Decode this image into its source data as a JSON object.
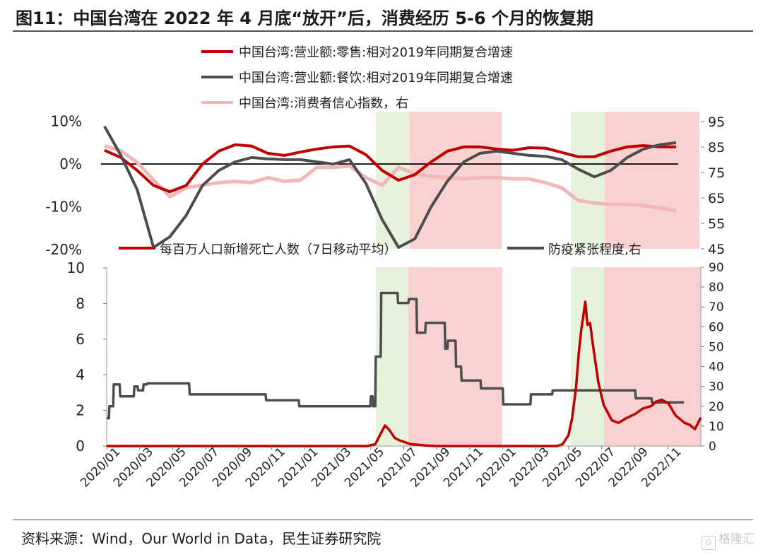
{
  "title": "图11：中国台湾在 2022 年 4 月底“放开”后，消费经历 5-6 个月的恢复期",
  "source": "资料来源：Wind，Our World in Data，民生证券研究院",
  "watermark": "格隆汇",
  "colors": {
    "red": "#c00000",
    "gray": "#4d4d4d",
    "pink": "#f0b8b8",
    "green_band": "#e7f2dc",
    "red_band": "#fad1d1"
  },
  "chart_data": [
    {
      "type": "line",
      "legend": [
        "中国台湾:营业额:零售:相对2019年同期复合增速",
        "中国台湾:营业额:餐饮:相对2019年同期复合增速",
        "中国台湾:消费者信心指数，右"
      ],
      "left_ticks": [
        "10%",
        "0%",
        "-10%",
        "-20%"
      ],
      "right_ticks": [
        "95",
        "85",
        "75",
        "65",
        "55",
        "45"
      ],
      "ylim_left": [
        -20,
        10
      ],
      "ylim_right": [
        45,
        95
      ],
      "shaded_periods": [
        {
          "from": "2021-05",
          "to": "2021-06",
          "color": "green"
        },
        {
          "from": "2021-07",
          "to": "2021-11",
          "color": "red"
        },
        {
          "from": "2022-05",
          "to": "2022-06",
          "color": "green"
        },
        {
          "from": "2022-07",
          "to": "2022-12",
          "color": "red"
        }
      ],
      "series": [
        {
          "name": "中国台湾:营业额:零售:相对2019年同期复合增速",
          "axis": "left",
          "color": "#c00000",
          "x": [
            "2020-01",
            "2020-02",
            "2020-03",
            "2020-04",
            "2020-05",
            "2020-06",
            "2020-07",
            "2020-08",
            "2020-09",
            "2020-10",
            "2020-11",
            "2020-12",
            "2021-01",
            "2021-02",
            "2021-03",
            "2021-04",
            "2021-05",
            "2021-06",
            "2021-07",
            "2021-08",
            "2021-09",
            "2021-10",
            "2021-11",
            "2021-12",
            "2022-01",
            "2022-02",
            "2022-03",
            "2022-04",
            "2022-05",
            "2022-06",
            "2022-07",
            "2022-08",
            "2022-09",
            "2022-10",
            "2022-11",
            "2022-12"
          ],
          "values": [
            3.2,
            1.5,
            -1.5,
            -5,
            -6.5,
            -5,
            0,
            3,
            4.5,
            4.2,
            2.5,
            2,
            2.8,
            3.5,
            4,
            4.2,
            2.2,
            -1.5,
            -3.8,
            -2.5,
            0.5,
            3,
            4,
            4,
            3.5,
            3.2,
            3.8,
            3.7,
            2.7,
            1.7,
            1.7,
            3,
            4,
            4.3,
            4,
            4
          ],
          "xlim": [
            "2020-01",
            "2022-12"
          ]
        },
        {
          "name": "中国台湾:营业额:餐饮:相对2019年同期复合增速",
          "axis": "left",
          "color": "#4d4d4d",
          "x": [
            "2020-01",
            "2020-02",
            "2020-03",
            "2020-04",
            "2020-05",
            "2020-06",
            "2020-07",
            "2020-08",
            "2020-09",
            "2020-10",
            "2020-11",
            "2020-12",
            "2021-01",
            "2021-02",
            "2021-03",
            "2021-04",
            "2021-05",
            "2021-06",
            "2021-07",
            "2021-08",
            "2021-09",
            "2021-10",
            "2021-11",
            "2021-12",
            "2022-01",
            "2022-02",
            "2022-03",
            "2022-04",
            "2022-05",
            "2022-06",
            "2022-07",
            "2022-08",
            "2022-09",
            "2022-10",
            "2022-11",
            "2022-12"
          ],
          "values": [
            8.8,
            2,
            -6,
            -19.5,
            -17,
            -12,
            -5,
            -1.5,
            0.5,
            1.5,
            1.2,
            1,
            1,
            0.5,
            0,
            1,
            -4.5,
            -13,
            -19.5,
            -17.5,
            -10,
            -4,
            0.5,
            2.5,
            3,
            2.5,
            2,
            1.8,
            1,
            -1.2,
            -3,
            -1.5,
            1.5,
            3.5,
            4.5,
            5
          ],
          "xlim": [
            "2020-01",
            "2022-12"
          ]
        },
        {
          "name": "中国台湾:消费者信心指数，右",
          "axis": "right",
          "color": "#f0b8b8",
          "x": [
            "2020-01",
            "2020-02",
            "2020-03",
            "2020-04",
            "2020-05",
            "2020-06",
            "2020-07",
            "2020-08",
            "2020-09",
            "2020-10",
            "2020-11",
            "2020-12",
            "2021-01",
            "2021-02",
            "2021-03",
            "2021-04",
            "2021-05",
            "2021-06",
            "2021-07",
            "2021-08",
            "2021-09",
            "2021-10",
            "2021-11",
            "2021-12",
            "2022-01",
            "2022-02",
            "2022-03",
            "2022-04",
            "2022-05",
            "2022-06",
            "2022-07",
            "2022-08",
            "2022-09",
            "2022-10",
            "2022-11",
            "2022-12"
          ],
          "values": [
            85.5,
            83.5,
            79,
            72,
            65.5,
            69,
            70,
            71,
            71.5,
            71,
            73,
            71.5,
            72,
            77,
            77,
            77.5,
            73,
            70,
            77,
            74.5,
            73.5,
            73,
            72.5,
            73,
            73,
            72.5,
            72.5,
            71,
            69,
            64,
            63,
            62.5,
            62.5,
            62,
            61,
            60
          ],
          "xlim": [
            "2020-01",
            "2022-12"
          ]
        }
      ]
    },
    {
      "type": "line",
      "legend": [
        "每百万人口新增死亡人数（7日移动平均）",
        "防疫紧张程度,右"
      ],
      "left_ticks": [
        "10",
        "8",
        "6",
        "4",
        "2",
        "0"
      ],
      "right_ticks": [
        "90",
        "80",
        "70",
        "60",
        "50",
        "40",
        "30",
        "20",
        "10",
        "0"
      ],
      "x_tick_labels": [
        "2020/01",
        "2020/03",
        "2020/05",
        "2020/07",
        "2020/09",
        "2020/11",
        "2021/01",
        "2021/03",
        "2021/05",
        "2021/07",
        "2021/09",
        "2021/11",
        "2022/01",
        "2022/03",
        "2022/05",
        "2022/07",
        "2022/09",
        "2022/11"
      ],
      "ylim_left": [
        0,
        10
      ],
      "ylim_right": [
        0,
        90
      ],
      "series": [
        {
          "name": "每百万人口新增死亡人数（7日移动平均）",
          "axis": "left",
          "color": "#c00000",
          "x": [
            "2020-01-01",
            "2021-04-25",
            "2021-05-10",
            "2021-05-20",
            "2021-05-28",
            "2021-06-05",
            "2021-06-15",
            "2021-06-25",
            "2021-07-05",
            "2021-07-15",
            "2021-07-25",
            "2021-08-10",
            "2021-09-01",
            "2022-04-10",
            "2022-04-20",
            "2022-05-01",
            "2022-05-08",
            "2022-05-15",
            "2022-05-20",
            "2022-05-25",
            "2022-05-28",
            "2022-06-01",
            "2022-06-05",
            "2022-06-10",
            "2022-06-15",
            "2022-06-25",
            "2022-07-05",
            "2022-07-20",
            "2022-08-01",
            "2022-08-15",
            "2022-09-01",
            "2022-09-15",
            "2022-10-01",
            "2022-10-10",
            "2022-10-20",
            "2022-11-01",
            "2022-11-15",
            "2022-12-01",
            "2022-12-10",
            "2022-12-20",
            "2022-12-31"
          ],
          "values": [
            0,
            0,
            0.1,
            0.7,
            1.15,
            0.9,
            0.45,
            0.3,
            0.2,
            0.1,
            0.08,
            0.03,
            0,
            0,
            0.1,
            0.6,
            1.6,
            3.3,
            5.2,
            6.6,
            7.2,
            8.1,
            6.8,
            6.9,
            5.7,
            3.6,
            2.3,
            1.45,
            1.3,
            1.55,
            1.8,
            2.1,
            2.25,
            2.5,
            2.6,
            2.4,
            1.7,
            1.3,
            1.2,
            0.95,
            1.6
          ],
          "xlim": [
            "2020-01-01",
            "2022-12-31"
          ]
        },
        {
          "name": "防疫紧张程度,右",
          "axis": "right",
          "color": "#4d4d4d",
          "x": [
            "2020-01-01",
            "2020-01-05",
            "2020-01-06",
            "2020-01-13",
            "2020-01-14",
            "2020-01-25",
            "2020-01-26",
            "2020-02-20",
            "2020-02-21",
            "2020-02-27",
            "2020-02-28",
            "2020-03-08",
            "2020-03-09",
            "2020-03-15",
            "2020-03-16",
            "2020-04-15",
            "2020-04-16",
            "2020-06-01",
            "2020-06-02",
            "2020-10-20",
            "2020-10-21",
            "2020-12-20",
            "2020-12-21",
            "2021-05-01",
            "2021-05-02",
            "2021-05-05",
            "2021-05-06",
            "2021-05-10",
            "2021-05-11",
            "2021-05-20",
            "2021-05-21",
            "2021-06-20",
            "2021-06-21",
            "2021-07-10",
            "2021-07-11",
            "2021-07-25",
            "2021-07-26",
            "2021-08-10",
            "2021-08-11",
            "2021-09-15",
            "2021-09-16",
            "2021-09-20",
            "2021-09-21",
            "2021-10-05",
            "2021-10-06",
            "2021-10-15",
            "2021-10-16",
            "2021-11-20",
            "2021-11-21",
            "2021-12-31",
            "2022-01-01",
            "2022-02-20",
            "2022-02-21",
            "2022-04-01",
            "2022-04-02",
            "2022-09-01",
            "2022-09-02",
            "2022-10-01",
            "2022-10-02",
            "2022-11-30"
          ],
          "values": [
            14,
            14,
            20,
            20,
            31,
            31,
            25,
            25,
            30,
            30,
            28,
            28,
            31,
            31,
            31.5,
            31.5,
            31.5,
            31.5,
            26,
            26,
            23,
            23,
            20,
            20,
            25,
            25,
            20,
            20,
            45,
            45,
            77,
            77,
            72,
            72,
            74,
            74,
            57,
            57,
            62,
            62,
            49,
            49,
            53,
            53,
            40,
            40,
            33,
            33,
            29,
            29,
            21,
            21,
            26,
            26,
            28,
            28,
            24,
            24,
            22,
            22
          ],
          "xlim": [
            "2020-01-01",
            "2022-12-31"
          ]
        }
      ]
    }
  ]
}
